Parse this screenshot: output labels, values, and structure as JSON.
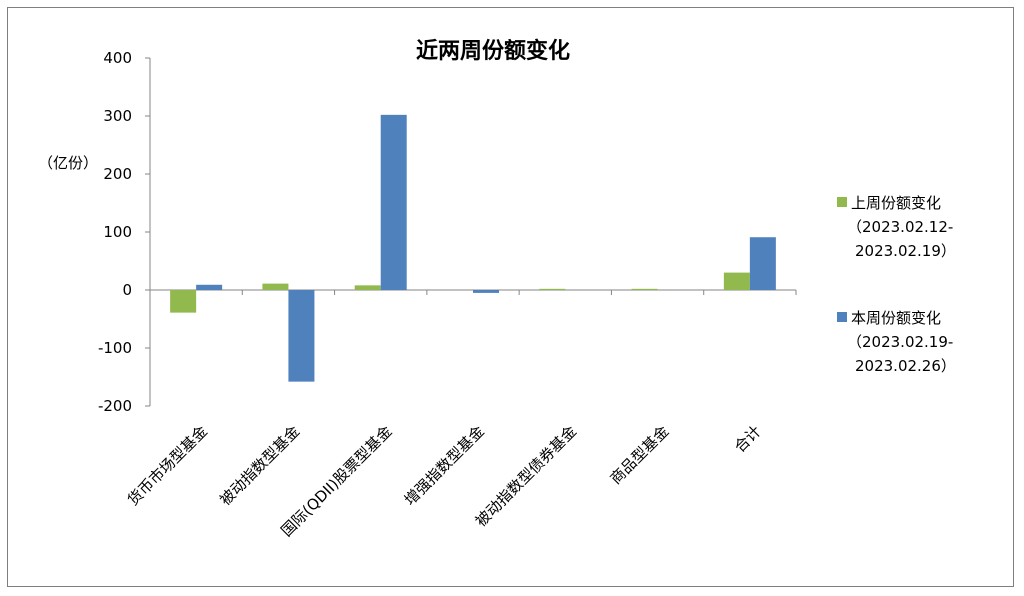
{
  "chart_data": {
    "type": "bar",
    "title": "近两周份额变化",
    "ylabel": "（亿份）",
    "ylim": [
      -200,
      400
    ],
    "yticks": [
      400,
      300,
      200,
      100,
      0,
      -100,
      -200
    ],
    "categories": [
      "货币市场型基金",
      "被动指数型基金",
      "国际(QDII)股票型基金",
      "增强指数型基金",
      "被动指数型债券基金",
      "商品型基金",
      "合计"
    ],
    "series": [
      {
        "name": "上周份额变化",
        "legend_lines": [
          "上周份额变化",
          "（2023.02.12-",
          "2023.02.19）"
        ],
        "color": "#92b94e",
        "values": [
          -39,
          11,
          8,
          0,
          2,
          2,
          30
        ]
      },
      {
        "name": "本周份额变化",
        "legend_lines": [
          "本周份额变化",
          "（2023.02.19-",
          "2023.02.26）"
        ],
        "color": "#4f81bd",
        "values": [
          9,
          -158,
          302,
          -5,
          0,
          0,
          91
        ]
      }
    ],
    "grid": false,
    "legend_position": "right"
  }
}
